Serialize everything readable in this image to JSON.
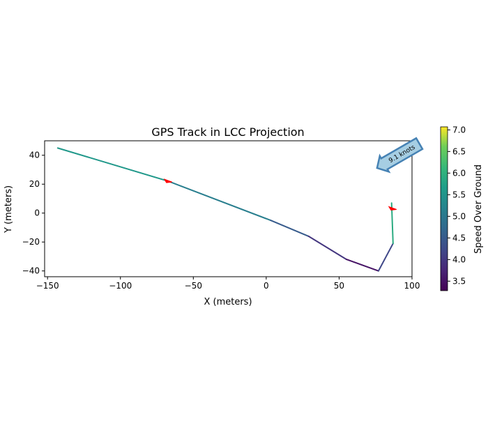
{
  "chart_data": {
    "type": "line",
    "title": "GPS Track in LCC Projection",
    "xlabel": "X (meters)",
    "ylabel": "Y (meters)",
    "xlim": [
      -152,
      100
    ],
    "ylim": [
      -44,
      50
    ],
    "xticks": [
      -150,
      -100,
      -50,
      0,
      50,
      100
    ],
    "yticks": [
      -40,
      -20,
      0,
      20,
      40
    ],
    "grid": false,
    "track": {
      "x": [
        -143,
        -67,
        3,
        29,
        55,
        77,
        87,
        86
      ],
      "y": [
        45,
        22,
        -5,
        -16,
        -32,
        -40,
        -21,
        7
      ],
      "speed": [
        5.6,
        5.5,
        4.7,
        4.3,
        3.6,
        3.4,
        5.0,
        6.8
      ]
    },
    "direction_markers": [
      {
        "x": -67,
        "y": 22,
        "color": "#ff0000"
      },
      {
        "x": 87,
        "y": 3,
        "color": "#ff0000"
      }
    ],
    "annotation": {
      "text": "9.1 knots",
      "x": 67,
      "y": 36,
      "fill": "#a6cee3",
      "edge": "#4682b4"
    },
    "colorbar": {
      "label": "Speed Over Ground",
      "range": [
        3.28,
        7.07
      ],
      "ticks": [
        "3.5",
        "4.0",
        "4.5",
        "5.0",
        "5.5",
        "6.0",
        "6.5",
        "7.0"
      ],
      "colormap": "viridis"
    }
  }
}
